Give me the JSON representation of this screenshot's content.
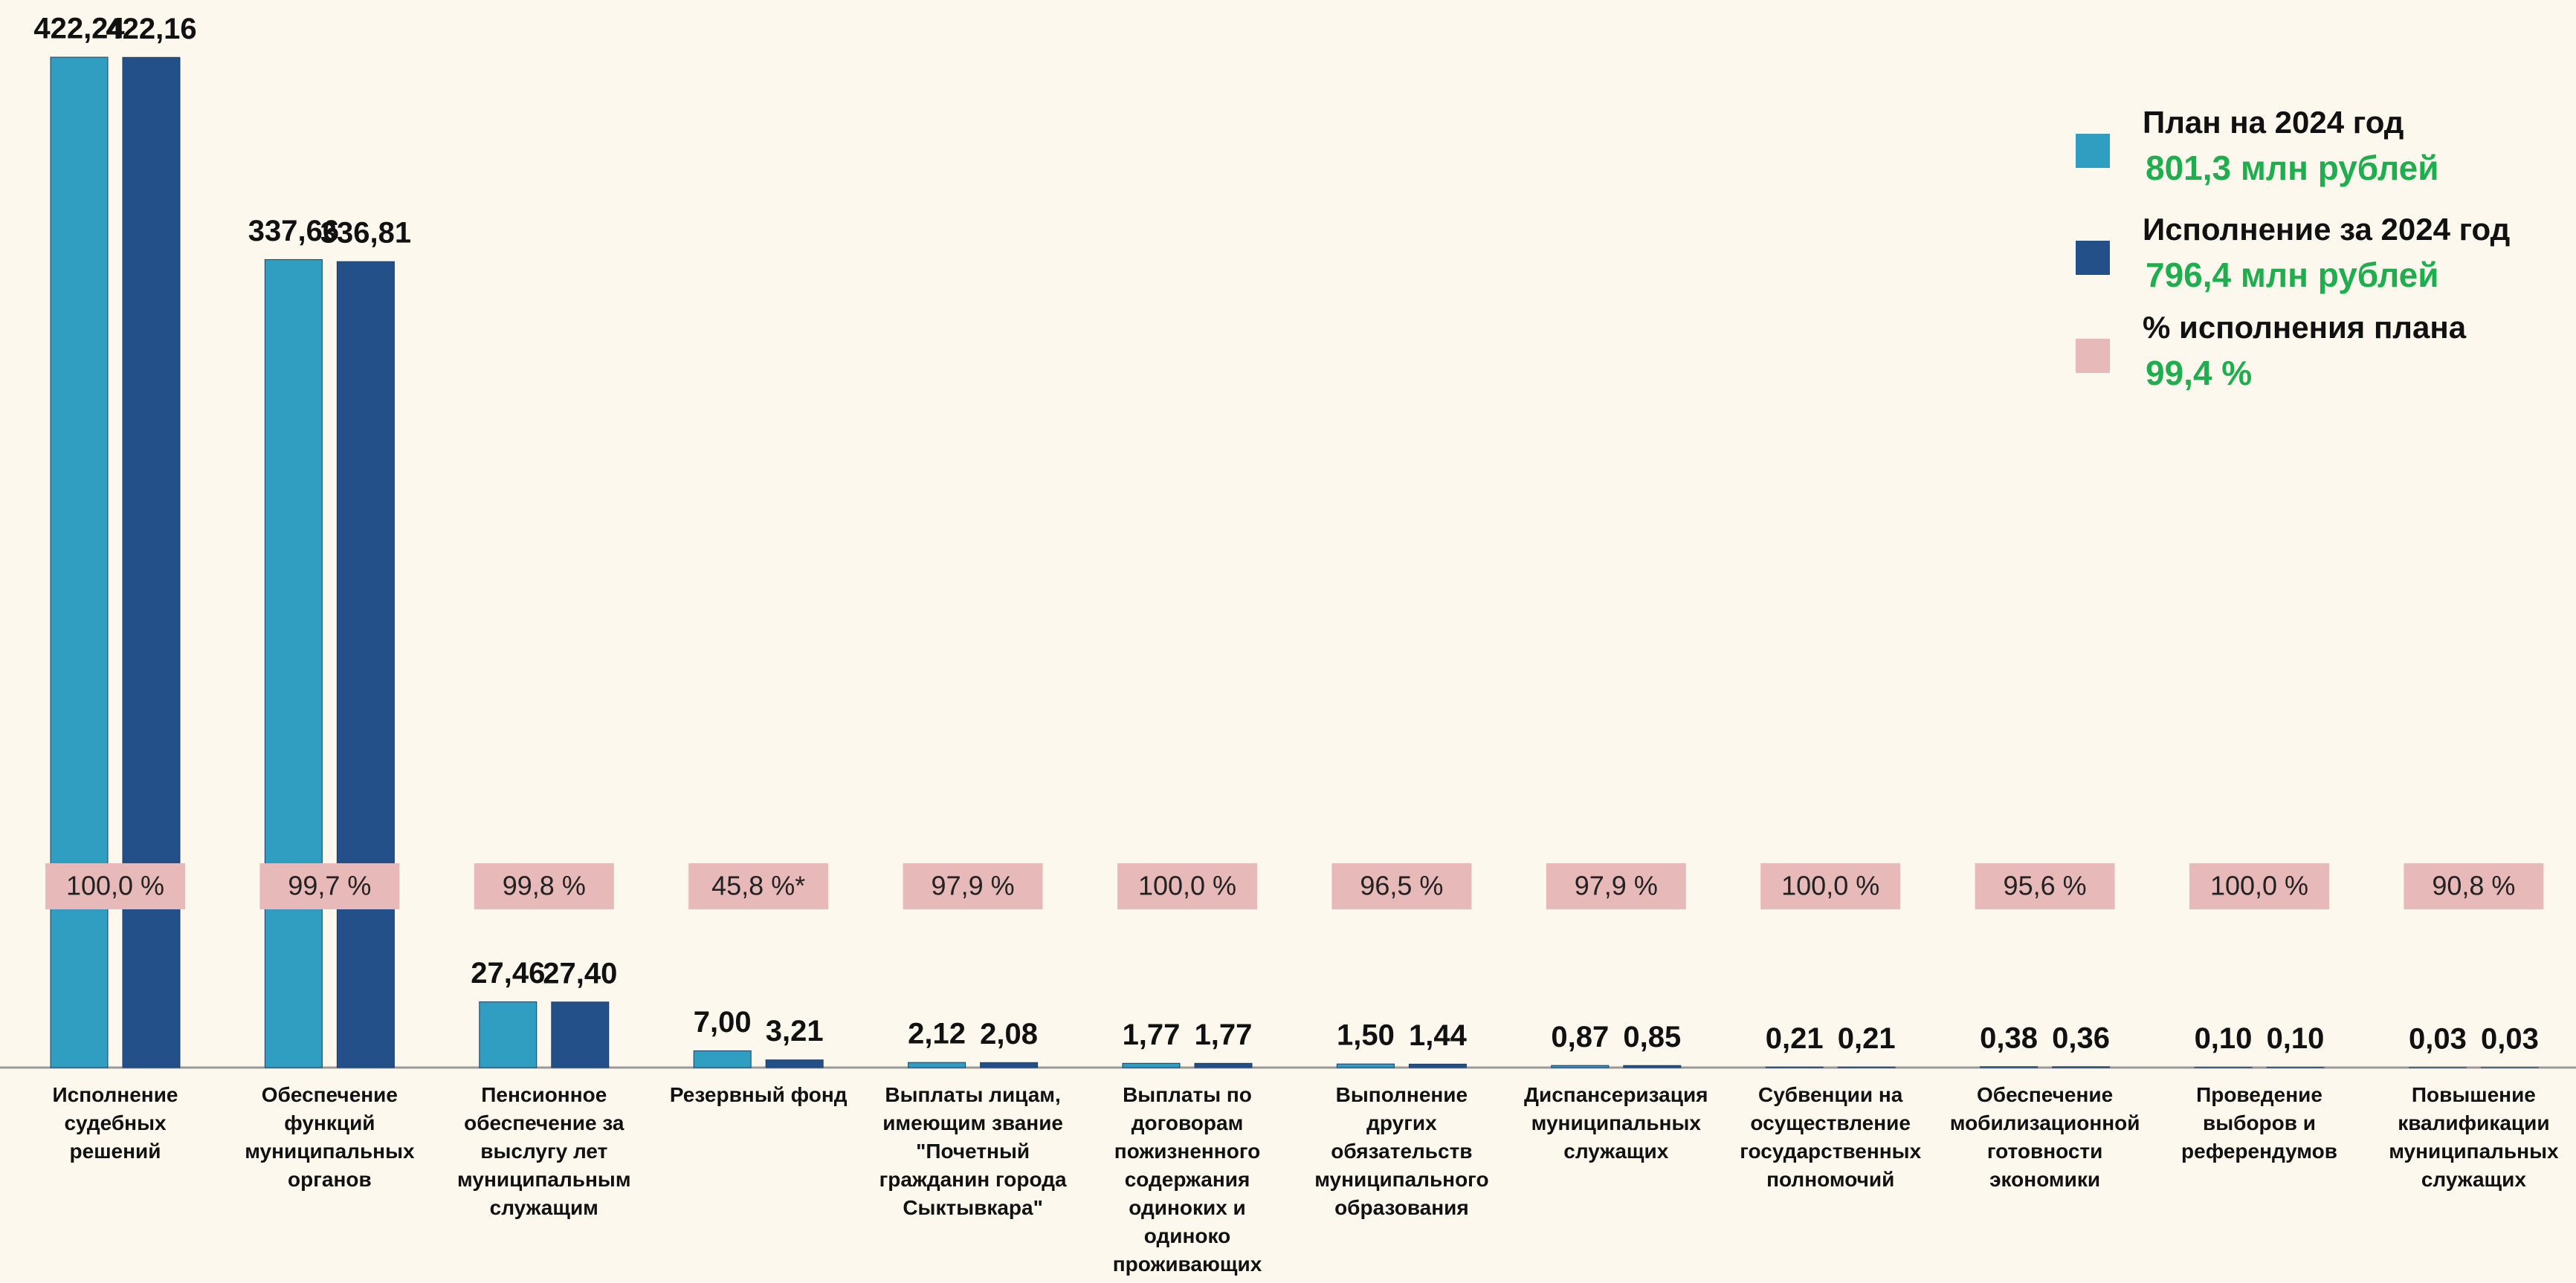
{
  "chart_data": {
    "type": "bar",
    "categories": [
      "Исполнение судебных решений",
      "Обеспечение функций муниципальных органов",
      "Пенсионное обеспечение за выслугу лет муниципальным служащим",
      "Резервный фонд",
      "Выплаты лицам, имеющим звание \"Почетный гражданин города Сыктывкара\"",
      "Выплаты по договорам пожизненного содержания одиноких и одиноко проживающих граждан",
      "Выполнение других обязательств муниципального образования",
      "Диспансеризация муниципальных служащих",
      "Субвенции на осуществление государственных полномочий",
      "Обеспечение мобилизационной готовности экономики",
      "Проведение выборов и референдумов",
      "Повышение квалификации муниципальных служащих"
    ],
    "series": [
      {
        "name": "План на 2024 год",
        "total": "801,3 млн рублей",
        "color": "#2f9ec0",
        "values": [
          422.24,
          337.66,
          27.46,
          7.0,
          2.12,
          1.77,
          1.5,
          0.87,
          0.21,
          0.38,
          0.1,
          0.03
        ],
        "value_labels": [
          "422,24",
          "337,66",
          "27,46",
          "7,00",
          "2,12",
          "1,77",
          "1,50",
          "0,87",
          "0,21",
          "0,38",
          "0,10",
          "0,03"
        ]
      },
      {
        "name": "Исполнение за 2024 год",
        "total": "796,4 млн рублей",
        "color": "#24508a",
        "values": [
          422.16,
          336.81,
          27.4,
          3.21,
          2.08,
          1.77,
          1.44,
          0.85,
          0.21,
          0.36,
          0.1,
          0.03
        ],
        "value_labels": [
          "422,16",
          "336,81",
          "27,40",
          "3,21",
          "2,08",
          "1,77",
          "1,44",
          "0,85",
          "0,21",
          "0,36",
          "0,10",
          "0,03"
        ]
      },
      {
        "name": "% исполнения плана",
        "total": "99,4 %",
        "color": "#e8b9b9",
        "style": "label-box",
        "values": [
          100.0,
          99.7,
          99.8,
          45.8,
          97.9,
          100.0,
          96.5,
          97.9,
          100.0,
          95.6,
          100.0,
          90.8
        ],
        "value_labels": [
          "100,0 %",
          "99,7 %",
          "99,8 %",
          "45,8 %*",
          "97,9 %",
          "100,0 %",
          "96,5 %",
          "97,9 %",
          "100,0 %",
          "95,6 %",
          "100,0 %",
          "90,8 %"
        ]
      }
    ],
    "legend_total_color": "#1fae4d"
  }
}
